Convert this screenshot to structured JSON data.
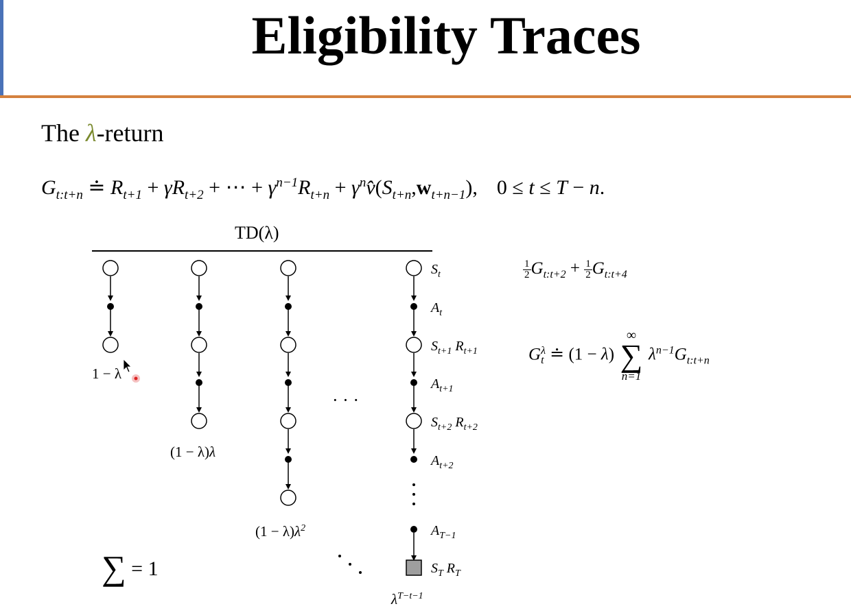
{
  "slide": {
    "title": "Eligibility Traces",
    "subtitle_prefix": "The ",
    "subtitle_lambda": "λ",
    "subtitle_suffix": "-return",
    "equation": {
      "G": "G",
      "G_sub": "t:t+n",
      "doteq": " ≐ ",
      "R1": "R",
      "R1_sub": "t+1",
      "plus1": " + ",
      "gamma1": "γ",
      "R2": "R",
      "R2_sub": "t+2",
      "plus2": " + ⋯ + ",
      "gamma2": "γ",
      "gamma2_sup": "n−1",
      "R3": "R",
      "R3_sub": "t+n",
      "plus3": " + ",
      "gamma3": "γ",
      "gamma3_sup": "n",
      "vhat": "v̂",
      "open": "(",
      "S": "S",
      "S_sub": "t+n",
      "comma": ",",
      "w": "w",
      "w_sub": "t+n−1",
      "close": "),",
      "cond_a": "0 ≤ ",
      "cond_t": "t",
      "cond_b": " ≤ ",
      "cond_T": "T",
      "cond_c": " − ",
      "cond_n": "n",
      "cond_end": "."
    },
    "td_label": "TD(λ)",
    "node_labels": {
      "St": {
        "main": "S",
        "sub": "t"
      },
      "At": {
        "main": "A",
        "sub": "t"
      },
      "St1": {
        "main": "S",
        "sub": "t+1",
        "r": "R",
        "rsub": "t+1"
      },
      "At1": {
        "main": "A",
        "sub": "t+1"
      },
      "St2": {
        "main": "S",
        "sub": "t+2",
        "r": "R",
        "rsub": "t+2"
      },
      "At2": {
        "main": "A",
        "sub": "t+2"
      },
      "ATm1": {
        "main": "A",
        "sub": "T−1"
      },
      "ST": {
        "main": "S",
        "sub": "T",
        "r": "R",
        "rsub": "T"
      }
    },
    "weights": {
      "w1": "1 − λ",
      "w2_a": "(1 − λ)",
      "w2_b": "λ",
      "w3_a": "(1 − λ)",
      "w3_b": "λ",
      "w3_sup": "2",
      "wT_a": "λ",
      "wT_sup": "T−t−1"
    },
    "ellipsis_h": "· · ·",
    "ellipsis_v": "⋮",
    "right_eq1": {
      "num": "1",
      "den": "2",
      "G": "G",
      "sub1": "t:t+2",
      "plus": " + ",
      "G2": "G",
      "sub2": "t:t+4"
    },
    "right_eq2": {
      "G": "G",
      "sup": "λ",
      "sub": "t",
      "doteq": " ≐ (1 − ",
      "lam": "λ",
      "close": ")",
      "sum_top": "∞",
      "sum_sym": "∑",
      "sum_bottom": "n=1",
      "lam2": "λ",
      "lam2_sup": "n−1",
      "G2": "G",
      "G2_sub": "t:t+n"
    },
    "sum_one": {
      "sym": "∑",
      "rest": " = 1"
    },
    "colors": {
      "title_rule": "#d4813e",
      "left_accent": "#4a72b8",
      "lambda": "#7a8a2e",
      "terminal_fill": "#9e9e9e"
    }
  }
}
